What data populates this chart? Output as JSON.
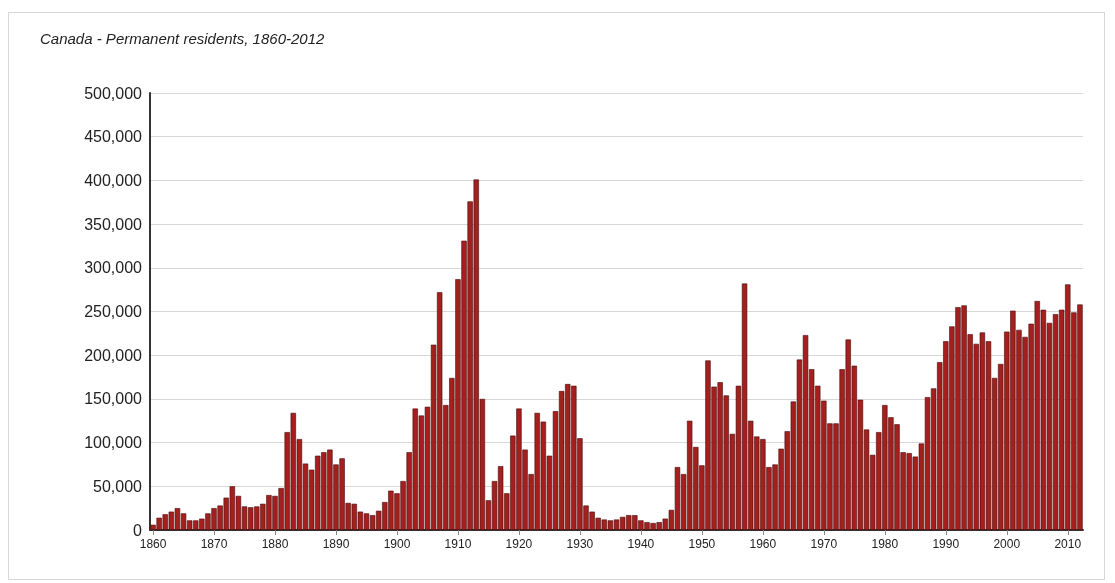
{
  "chart_data": {
    "type": "bar",
    "title": "Canada - Permanent residents, 1860-2012",
    "categories": [
      "1860",
      null,
      null,
      null,
      null,
      null,
      null,
      null,
      null,
      null,
      "1870",
      null,
      null,
      null,
      null,
      null,
      null,
      null,
      null,
      null,
      "1880",
      null,
      null,
      null,
      null,
      null,
      null,
      null,
      null,
      null,
      "1890",
      null,
      null,
      null,
      null,
      null,
      null,
      null,
      null,
      null,
      "1900",
      null,
      null,
      null,
      null,
      null,
      null,
      null,
      null,
      null,
      "1910",
      null,
      null,
      null,
      null,
      null,
      null,
      null,
      null,
      null,
      "1920",
      null,
      null,
      null,
      null,
      null,
      null,
      null,
      null,
      null,
      "1930",
      null,
      null,
      null,
      null,
      null,
      null,
      null,
      null,
      null,
      "1940",
      null,
      null,
      null,
      null,
      null,
      null,
      null,
      null,
      null,
      "1950",
      null,
      null,
      null,
      null,
      null,
      null,
      null,
      null,
      null,
      "1960",
      null,
      null,
      null,
      null,
      null,
      null,
      null,
      null,
      null,
      "1970",
      null,
      null,
      null,
      null,
      null,
      null,
      null,
      null,
      null,
      "1980",
      null,
      null,
      null,
      null,
      null,
      null,
      null,
      null,
      null,
      "1990",
      null,
      null,
      null,
      null,
      null,
      null,
      null,
      null,
      null,
      "2000",
      null,
      null,
      null,
      null,
      null,
      null,
      null,
      null,
      null,
      "2010",
      null,
      null
    ],
    "values": [
      6000,
      14000,
      18000,
      21000,
      25000,
      19000,
      11000,
      11000,
      13000,
      19000,
      25000,
      28000,
      37000,
      50000,
      39000,
      27000,
      26000,
      27000,
      30000,
      40000,
      39000,
      48000,
      112000,
      134000,
      104000,
      76000,
      69000,
      85000,
      89000,
      92000,
      75000,
      82000,
      31000,
      30000,
      21000,
      19000,
      17000,
      22000,
      32000,
      45000,
      42000,
      56000,
      89000,
      139000,
      131000,
      141000,
      212000,
      272000,
      143000,
      174000,
      287000,
      331000,
      376000,
      401000,
      150000,
      34000,
      56000,
      73000,
      42000,
      108000,
      139000,
      92000,
      64000,
      134000,
      124000,
      85000,
      136000,
      159000,
      167000,
      165000,
      105000,
      28000,
      21000,
      14000,
      12000,
      11000,
      12000,
      15000,
      17000,
      17000,
      11000,
      9000,
      8000,
      9000,
      13000,
      23000,
      72000,
      64000,
      125000,
      95000,
      74000,
      194000,
      164000,
      169000,
      154000,
      110000,
      165000,
      282000,
      125000,
      107000,
      104000,
      72000,
      75000,
      93000,
      113000,
      147000,
      195000,
      223000,
      184000,
      165000,
      148000,
      122000,
      122000,
      184000,
      218000,
      188000,
      149000,
      115000,
      86000,
      112000,
      143000,
      129000,
      121000,
      89000,
      88000,
      84000,
      99000,
      152000,
      162000,
      192000,
      216000,
      233000,
      255000,
      257000,
      224000,
      213000,
      226000,
      216000,
      174000,
      190000,
      227000,
      251000,
      229000,
      221000,
      236000,
      262000,
      252000,
      237000,
      247000,
      252000,
      281000,
      249000,
      258000
    ],
    "color": "#a3201f",
    "ylim": [
      0,
      500000
    ],
    "yticks": [
      0,
      {
        "value": 50000,
        "label": "50,000"
      },
      {
        "value": 100000,
        "label": "100,000"
      },
      {
        "value": 150000,
        "label": "150,000"
      },
      {
        "value": 200000,
        "label": "200,000"
      },
      {
        "value": 250000,
        "label": "250,000"
      },
      {
        "value": 300000,
        "label": "300,000"
      },
      {
        "value": 350000,
        "label": "350,000"
      },
      {
        "value": 400000,
        "label": "400,000"
      },
      {
        "value": 450000,
        "label": "450,000"
      },
      {
        "value": 500000,
        "label": "500,000"
      }
    ],
    "grid": "y"
  }
}
